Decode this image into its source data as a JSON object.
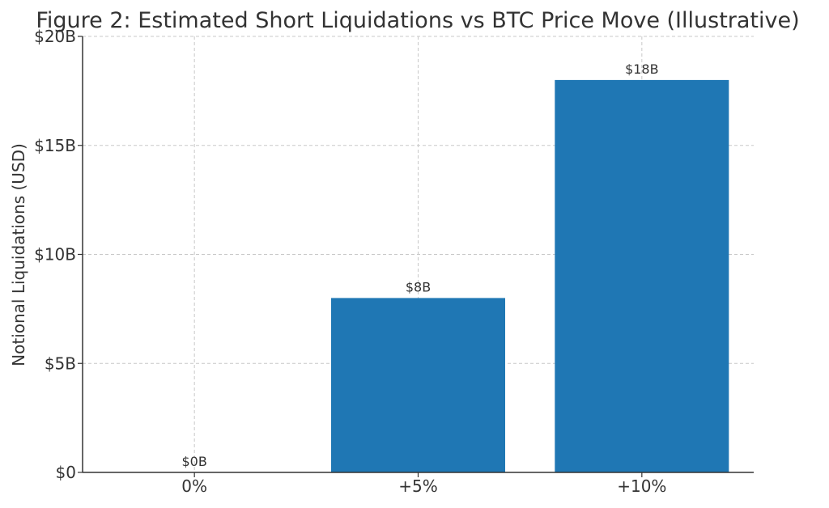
{
  "chart_data": {
    "type": "bar",
    "title": "Figure 2: Estimated Short Liquidations vs BTC Price Move (Illustrative)",
    "xlabel": "",
    "ylabel": "Notional Liquidations (USD)",
    "categories": [
      "0%",
      "+5%",
      "+10%"
    ],
    "values": [
      0,
      8,
      18
    ],
    "value_unit": "billions USD",
    "data_labels": [
      "$0B",
      "$8B",
      "$18B"
    ],
    "ylim": [
      0,
      20
    ],
    "yticks": [
      0,
      5,
      10,
      15,
      20
    ],
    "ytick_labels": [
      "$0",
      "$5B",
      "$10B",
      "$15B",
      "$20B"
    ],
    "grid": true,
    "legend": "none",
    "colors": {
      "bar": "#1f77b4",
      "grid": "#c8c8c8",
      "axis": "#333333",
      "text": "#333333"
    }
  }
}
